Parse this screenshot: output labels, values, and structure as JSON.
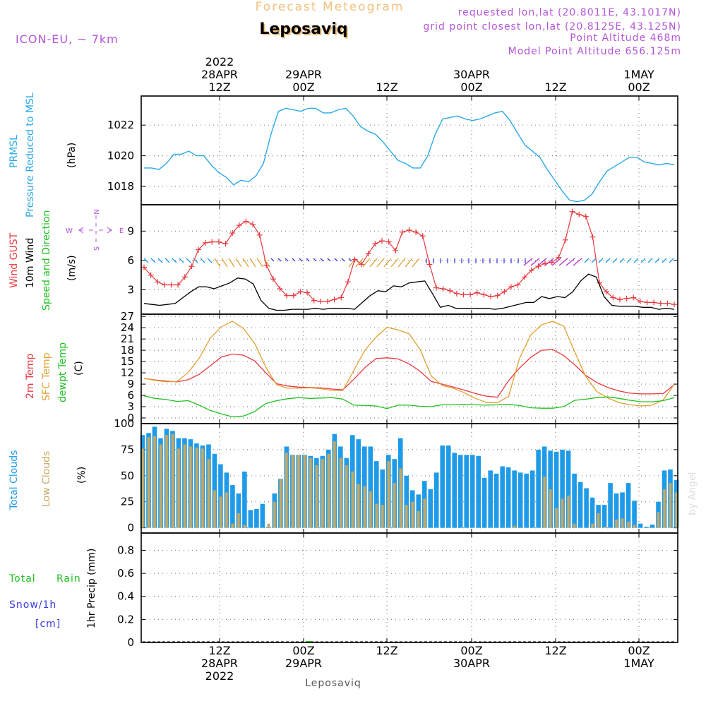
{
  "header": {
    "product": "Forecast Meteogram",
    "location": "Leposaviq",
    "model": "ICON-EU, ~ 7km",
    "requested": "requested lon,lat (20.8011E, 43.1017N)",
    "grid_point": "grid point closest lon,lat (20.8125E, 43.125N)",
    "point_altitude": "Point Altitude 468m",
    "model_altitude": "Model Point Altitude 656.125m",
    "footer_location": "Leposaviq",
    "watermark": "by Angel"
  },
  "time_axis": {
    "top_labels": [
      {
        "lines": [
          "2022",
          "28APR",
          "12Z"
        ]
      },
      {
        "lines": [
          "29APR",
          "00Z"
        ]
      },
      {
        "lines": [
          "12Z"
        ]
      },
      {
        "lines": [
          "30APR",
          "00Z"
        ]
      },
      {
        "lines": [
          "12Z"
        ]
      },
      {
        "lines": [
          "1MAY",
          "00Z"
        ]
      }
    ],
    "bottom_labels": [
      {
        "lines": [
          "12Z",
          "28APR",
          "2022"
        ]
      },
      {
        "lines": [
          "00Z",
          "29APR"
        ]
      },
      {
        "lines": [
          "12Z"
        ]
      },
      {
        "lines": [
          "00Z",
          "30APR"
        ]
      },
      {
        "lines": [
          "12Z"
        ]
      },
      {
        "lines": [
          "00Z",
          "1MAY"
        ]
      }
    ]
  },
  "panels": {
    "pressure": {
      "label1": "PRMSL",
      "label2": "Pressure Reduced to MSL",
      "unit": "(hPa)"
    },
    "wind": {
      "label_gust": "Wind GUST",
      "label_wind": "10m Wind",
      "label_dir": "Speed and Direction",
      "unit": "(m/s)",
      "compass_n": "N",
      "compass_s": "S",
      "compass_w": "W",
      "compass_e": "E"
    },
    "temp": {
      "label_2m": "2m Temp",
      "label_sfc": "SFC Temp",
      "label_dewpt": "dewpt Temp",
      "unit": "(C)"
    },
    "clouds": {
      "label_total": "Total Clouds",
      "label_low": "Low Clouds",
      "unit": "(%)"
    },
    "precip": {
      "label_total": "Total",
      "label_rain": "Rain",
      "label_snow": "Snow/1h",
      "label_cm": "[cm]",
      "unit": "1hr Precip (mm)"
    }
  },
  "colors": {
    "pressure": "#2aa8e6",
    "gust": "#e8383e",
    "wind": "#000000",
    "t2m": "#e8383e",
    "tsfc": "#e0a030",
    "dewpt": "#20c020",
    "total_clouds": "#1e9be8",
    "low_clouds": "#c8a860",
    "title_orange": "#f2c27e",
    "meta_purple": "#b455d6",
    "rain_green": "#20c020",
    "snow_blue": "#3a3ae0"
  },
  "chart_data": [
    {
      "type": "line",
      "title": "PRMSL",
      "ylabel": "(hPa)",
      "ylim": [
        1016.8,
        1023.9
      ],
      "yticks": [
        1018,
        1020,
        1022
      ],
      "series": [
        {
          "name": "PRMSL",
          "values": [
            1019.2,
            1019.2,
            1019.1,
            1019.5,
            1020.1,
            1020.1,
            1020.3,
            1020.0,
            1020.0,
            1019.4,
            1018.9,
            1018.6,
            1018.1,
            1018.4,
            1018.3,
            1018.7,
            1019.5,
            1021.4,
            1022.9,
            1023.1,
            1023.0,
            1022.9,
            1023.1,
            1023.1,
            1022.8,
            1022.8,
            1023.0,
            1023.1,
            1022.6,
            1021.9,
            1021.6,
            1021.4,
            1020.9,
            1020.3,
            1019.7,
            1019.5,
            1019.2,
            1019.2,
            1020.0,
            1021.4,
            1022.4,
            1022.5,
            1022.6,
            1022.4,
            1022.3,
            1022.4,
            1022.6,
            1022.8,
            1022.9,
            1022.3,
            1021.5,
            1020.7,
            1020.3,
            1019.9,
            1019.1,
            1018.4,
            1017.7,
            1017.1,
            1017.0,
            1017.1,
            1017.5,
            1018.3,
            1019.0,
            1019.3,
            1019.6,
            1019.9,
            1019.9,
            1019.6,
            1019.5,
            1019.4,
            1019.5,
            1019.4
          ]
        }
      ]
    },
    {
      "type": "line",
      "title": "Wind GUST / 10m Wind",
      "ylabel": "(m/s)",
      "ylim": [
        0.5,
        11.7
      ],
      "yticks": [
        3,
        6,
        9
      ],
      "series": [
        {
          "name": "Wind GUST",
          "values": [
            5.3,
            4.5,
            3.8,
            3.5,
            3.5,
            3.5,
            4.3,
            5.4,
            7.1,
            7.8,
            7.9,
            7.9,
            7.7,
            8.8,
            9.6,
            10.0,
            9.7,
            8.6,
            5.5,
            4.1,
            3.1,
            2.4,
            2.4,
            2.8,
            2.7,
            1.9,
            1.8,
            1.8,
            2.0,
            2.2,
            3.8,
            6.1,
            5.6,
            6.7,
            7.7,
            8.0,
            7.9,
            7.0,
            8.9,
            9.1,
            8.9,
            8.5,
            5.6,
            3.2,
            3.1,
            2.9,
            2.6,
            2.5,
            2.5,
            2.7,
            2.5,
            2.3,
            2.4,
            2.8,
            3.3,
            3.5,
            4.3,
            5.0,
            5.4,
            5.7,
            5.8,
            6.3,
            8.1,
            11.0,
            10.7,
            10.5,
            8.4,
            3.7,
            2.8,
            2.2,
            2.0,
            2.1,
            2.2,
            1.8,
            1.7,
            1.7,
            1.6,
            1.6,
            1.5
          ]
        },
        {
          "name": "10m Wind",
          "values": [
            1.6,
            1.5,
            1.4,
            1.5,
            1.6,
            2.2,
            2.8,
            3.3,
            3.3,
            3.1,
            3.4,
            3.7,
            4.2,
            4.1,
            3.6,
            1.9,
            1.1,
            0.9,
            0.9,
            1.0,
            1.0,
            1.0,
            1.1,
            1.0,
            1.1,
            1.1,
            1.1,
            1.0,
            1.7,
            2.4,
            2.9,
            2.8,
            3.4,
            3.3,
            3.7,
            3.8,
            3.9,
            2.6,
            1.2,
            1.4,
            1.1,
            1.1,
            1.1,
            1.1,
            1.1,
            1.0,
            1.1,
            1.3,
            1.5,
            1.7,
            1.7,
            2.3,
            2.1,
            2.3,
            2.2,
            2.8,
            3.9,
            4.6,
            4.3,
            2.3,
            1.4,
            1.3,
            1.3,
            1.3,
            1.2,
            1.2,
            1.0,
            1.1,
            1.0
          ]
        }
      ]
    },
    {
      "type": "line",
      "title": "2m Temp / SFC Temp / dewpt Temp",
      "ylabel": "(C)",
      "ylim": [
        -1.5,
        27.6
      ],
      "yticks": [
        0,
        3,
        6,
        9,
        12,
        15,
        18,
        21,
        24,
        27
      ],
      "series": [
        {
          "name": "2m Temp",
          "values": [
            10.5,
            10.1,
            9.8,
            9.6,
            10.2,
            11.6,
            13.9,
            16.2,
            17.0,
            16.7,
            15.2,
            12.1,
            9.1,
            8.5,
            8.2,
            8.1,
            8.0,
            7.7,
            7.5,
            10.3,
            13.4,
            15.8,
            16.0,
            15.7,
            14.4,
            12.4,
            9.7,
            9.0,
            8.2,
            7.4,
            6.5,
            5.8,
            5.5,
            9.9,
            13.3,
            16.1,
            18.0,
            18.2,
            16.6,
            14.1,
            11.3,
            9.4,
            8.1,
            7.2,
            6.6,
            6.4,
            6.4,
            6.5,
            8.8
          ]
        },
        {
          "name": "SFC Temp",
          "values": [
            10.5,
            10.0,
            9.6,
            9.7,
            12.1,
            15.9,
            21.2,
            24.3,
            25.7,
            23.8,
            19.9,
            13.7,
            8.8,
            7.9,
            7.9,
            8.0,
            7.8,
            7.3,
            7.3,
            12.7,
            18.0,
            21.5,
            24.1,
            23.4,
            22.4,
            18.2,
            11.2,
            8.6,
            7.9,
            6.7,
            5.2,
            4.1,
            4.1,
            5.7,
            15.9,
            22.0,
            24.8,
            25.7,
            24.4,
            17.5,
            11.0,
            7.0,
            5.3,
            4.1,
            3.5,
            3.2,
            3.4,
            4.8,
            8.9
          ]
        },
        {
          "name": "dewpt Temp",
          "values": [
            5.9,
            5.2,
            4.9,
            4.4,
            4.6,
            3.4,
            2.0,
            1.1,
            0.3,
            0.5,
            1.7,
            3.8,
            4.6,
            5.1,
            5.4,
            5.2,
            5.3,
            5.4,
            5.0,
            3.4,
            3.3,
            3.2,
            2.5,
            3.4,
            3.4,
            3.1,
            3.0,
            3.5,
            3.5,
            3.6,
            3.5,
            3.4,
            3.5,
            3.6,
            3.3,
            2.7,
            2.6,
            2.6,
            3.0,
            4.7,
            5.0,
            5.4,
            5.6,
            5.2,
            4.7,
            4.3,
            4.3,
            4.6,
            5.4
          ]
        }
      ]
    },
    {
      "type": "bar",
      "title": "Total Clouds / Low Clouds",
      "ylabel": "(%)",
      "ylim": [
        -5,
        100
      ],
      "yticks": [
        0,
        25,
        50,
        75,
        100
      ],
      "series": [
        {
          "name": "Total Clouds",
          "values": [
            89,
            91,
            97,
            86,
            95,
            93,
            86,
            86,
            85,
            81,
            79,
            80,
            71,
            61,
            53,
            41,
            33,
            54,
            17,
            18,
            23,
            1,
            33,
            47,
            78,
            70,
            70,
            70,
            69,
            67,
            69,
            75,
            90,
            78,
            67,
            89,
            85,
            78,
            78,
            64,
            56,
            70,
            66,
            86,
            50,
            36,
            32,
            45,
            37,
            53,
            79,
            79,
            72,
            70,
            70,
            70,
            69,
            48,
            55,
            52,
            59,
            58,
            55,
            53,
            52,
            55,
            75,
            78,
            74,
            73,
            75,
            74,
            52,
            44,
            38,
            29,
            22,
            22,
            43,
            33,
            34,
            43,
            26,
            4,
            1,
            3,
            25,
            55,
            56,
            46
          ]
        },
        {
          "name": "Low Clouds",
          "values": [
            76,
            87,
            88,
            80,
            89,
            90,
            76,
            80,
            78,
            77,
            76,
            66,
            36,
            30,
            34,
            4,
            14,
            3,
            0,
            0,
            0,
            4,
            25,
            47,
            72,
            70,
            70,
            70,
            67,
            60,
            66,
            71,
            83,
            67,
            60,
            54,
            42,
            40,
            35,
            23,
            22,
            64,
            43,
            57,
            22,
            25,
            16,
            28,
            0,
            0,
            0,
            0,
            0,
            0,
            0,
            0,
            0,
            0,
            0,
            0,
            0,
            0,
            2,
            0,
            0,
            0,
            0,
            49,
            37,
            19,
            28,
            31,
            4,
            0,
            0,
            4,
            14,
            1,
            0,
            8,
            9,
            6,
            3,
            0,
            0,
            0,
            15,
            37,
            43,
            34
          ]
        }
      ]
    },
    {
      "type": "line",
      "title": "1hr Precip",
      "ylabel": "1hr Precip (mm)",
      "ylim": [
        0,
        0.95
      ],
      "yticks": [
        0,
        0.2,
        0.4,
        0.6,
        0.8
      ],
      "series": [
        {
          "name": "Total Rain",
          "values": [
            0,
            0,
            0,
            0,
            0,
            0,
            0,
            0,
            0,
            0,
            0,
            0,
            0,
            0,
            0,
            0,
            0,
            0,
            0,
            0,
            0,
            0,
            0,
            0,
            0,
            0,
            0,
            0,
            0,
            0,
            0,
            0,
            0,
            0,
            0,
            0,
            0,
            0,
            0,
            0,
            0,
            0,
            0,
            0,
            0,
            0,
            0,
            0,
            0,
            0,
            0,
            0,
            0,
            0,
            0,
            0,
            0,
            0,
            0,
            0,
            0,
            0,
            0,
            0,
            0,
            0,
            0,
            0,
            0,
            0,
            0,
            0,
            0,
            0,
            0,
            0,
            0,
            0,
            0,
            0,
            0,
            0,
            0,
            0,
            0,
            0,
            0,
            0,
            0,
            0
          ]
        }
      ]
    }
  ]
}
